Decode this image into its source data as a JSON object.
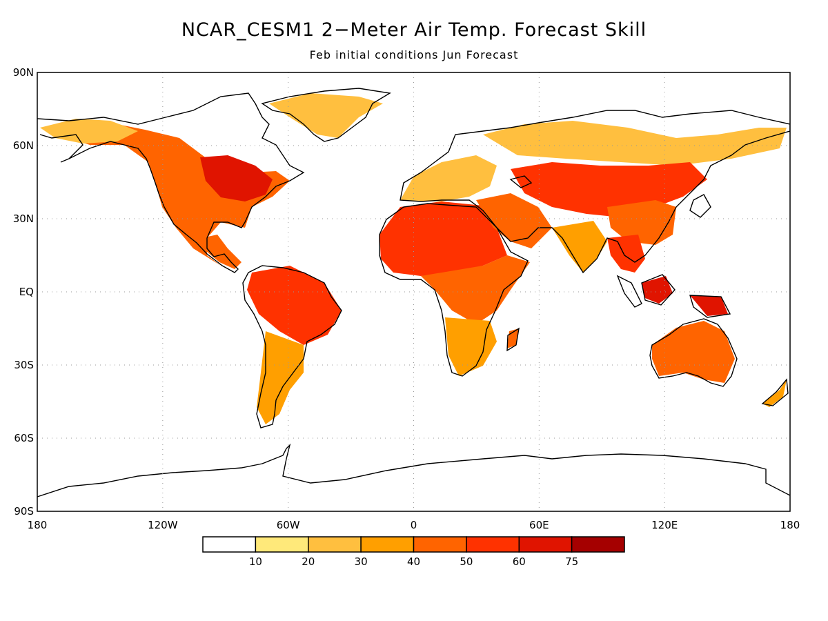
{
  "title": "NCAR_CESM1 2−Meter Air Temp. Forecast Skill",
  "subtitle": "Feb initial conditions  Jun Forecast",
  "map": {
    "projection": "equirectangular",
    "lon_range": [
      -180,
      180
    ],
    "lat_range": [
      -90,
      90
    ],
    "gridlines": "dotted",
    "lat_labels": [
      "90N",
      "60N",
      "30N",
      "EQ",
      "30S",
      "60S",
      "90S"
    ],
    "lat_values": [
      90,
      60,
      30,
      0,
      -30,
      -60,
      -90
    ],
    "lon_labels": [
      "180",
      "120W",
      "60W",
      "0",
      "60E",
      "120E",
      "180"
    ],
    "lon_values": [
      -180,
      -120,
      -60,
      0,
      60,
      120,
      180
    ],
    "coastline_color": "#000000"
  },
  "colorbar": {
    "labels": [
      "10",
      "20",
      "30",
      "40",
      "50",
      "60",
      "75"
    ],
    "colors": [
      "#ffffff",
      "#ffe97a",
      "#ffbf3f",
      "#ff9f00",
      "#ff6400",
      "#ff3200",
      "#e01400",
      "#a50000"
    ]
  },
  "skill_regions": [
    {
      "name": "North America",
      "level": 4
    },
    {
      "name": "Great Lakes / Eastern Canada",
      "level": 6
    },
    {
      "name": "Alaska",
      "level": 2
    },
    {
      "name": "Greenland",
      "level": 2
    },
    {
      "name": "Central America",
      "level": 4
    },
    {
      "name": "Amazon",
      "level": 5
    },
    {
      "name": "Southern South America",
      "level": 3
    },
    {
      "name": "Sahara",
      "level": 5
    },
    {
      "name": "Sahel / East Africa",
      "level": 4
    },
    {
      "name": "Southern Africa",
      "level": 3
    },
    {
      "name": "Madagascar",
      "level": 4
    },
    {
      "name": "Europe",
      "level": 2
    },
    {
      "name": "Middle East",
      "level": 4
    },
    {
      "name": "Central Asia",
      "level": 5
    },
    {
      "name": "Siberia",
      "level": 2
    },
    {
      "name": "India",
      "level": 3
    },
    {
      "name": "East Asia",
      "level": 4
    },
    {
      "name": "Southeast Asia",
      "level": 5
    },
    {
      "name": "Borneo",
      "level": 6
    },
    {
      "name": "New Guinea",
      "level": 6
    },
    {
      "name": "Australia",
      "level": 4
    },
    {
      "name": "New Zealand",
      "level": 3
    }
  ]
}
